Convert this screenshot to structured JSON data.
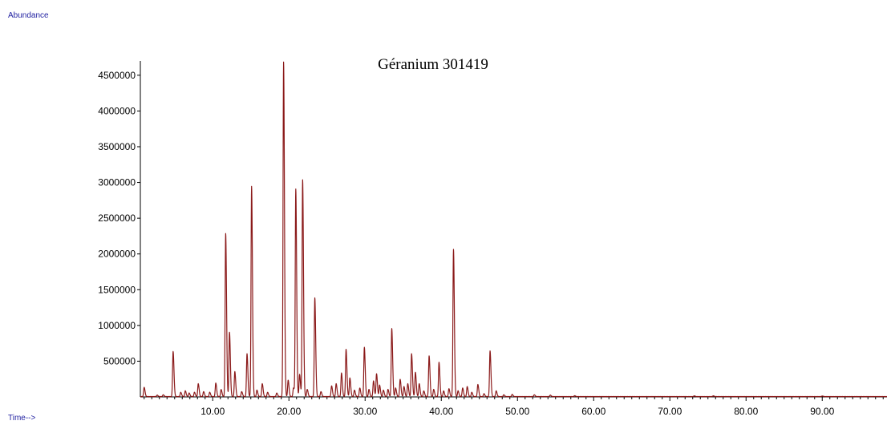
{
  "chart_data": {
    "type": "line",
    "title": "Géranium 301419",
    "ylabel": "Abundance",
    "xlabel": "Time-->",
    "xlim": [
      0.5,
      98.5
    ],
    "ylim": [
      0,
      4700000
    ],
    "x_ticks": [
      "10.00",
      "20.00",
      "30.00",
      "40.00",
      "50.00",
      "60.00",
      "70.00",
      "80.00",
      "90.00"
    ],
    "y_ticks": [
      "500000",
      "1000000",
      "1500000",
      "2000000",
      "2500000",
      "3000000",
      "3500000",
      "4000000",
      "4500000"
    ],
    "grid": false,
    "colors": {
      "line": "#8b1a1a",
      "axis": "#000000",
      "axis_text": "#1f1fa0"
    },
    "series": [
      {
        "peaks": [
          {
            "x": 1.0,
            "y": 130000
          },
          {
            "x": 2.7,
            "y": 20000
          },
          {
            "x": 3.5,
            "y": 25000
          },
          {
            "x": 4.8,
            "y": 630000
          },
          {
            "x": 5.8,
            "y": 60000
          },
          {
            "x": 6.4,
            "y": 80000
          },
          {
            "x": 6.9,
            "y": 50000
          },
          {
            "x": 7.6,
            "y": 60000
          },
          {
            "x": 8.1,
            "y": 180000
          },
          {
            "x": 8.8,
            "y": 70000
          },
          {
            "x": 9.6,
            "y": 60000
          },
          {
            "x": 10.4,
            "y": 190000
          },
          {
            "x": 11.1,
            "y": 100000
          },
          {
            "x": 11.7,
            "y": 2280000
          },
          {
            "x": 12.2,
            "y": 900000
          },
          {
            "x": 12.9,
            "y": 350000
          },
          {
            "x": 13.8,
            "y": 70000
          },
          {
            "x": 14.5,
            "y": 600000
          },
          {
            "x": 15.1,
            "y": 2940000
          },
          {
            "x": 15.8,
            "y": 90000
          },
          {
            "x": 16.5,
            "y": 180000
          },
          {
            "x": 17.2,
            "y": 60000
          },
          {
            "x": 18.4,
            "y": 50000
          },
          {
            "x": 19.3,
            "y": 4680000
          },
          {
            "x": 19.9,
            "y": 230000
          },
          {
            "x": 20.6,
            "y": 120000
          },
          {
            "x": 20.9,
            "y": 2900000
          },
          {
            "x": 21.4,
            "y": 310000
          },
          {
            "x": 21.8,
            "y": 3030000
          },
          {
            "x": 22.4,
            "y": 100000
          },
          {
            "x": 23.4,
            "y": 1380000
          },
          {
            "x": 24.2,
            "y": 70000
          },
          {
            "x": 25.6,
            "y": 150000
          },
          {
            "x": 26.2,
            "y": 180000
          },
          {
            "x": 26.9,
            "y": 330000
          },
          {
            "x": 27.5,
            "y": 660000
          },
          {
            "x": 28.0,
            "y": 260000
          },
          {
            "x": 28.6,
            "y": 90000
          },
          {
            "x": 29.3,
            "y": 120000
          },
          {
            "x": 29.9,
            "y": 690000
          },
          {
            "x": 30.5,
            "y": 100000
          },
          {
            "x": 31.1,
            "y": 220000
          },
          {
            "x": 31.5,
            "y": 320000
          },
          {
            "x": 31.9,
            "y": 160000
          },
          {
            "x": 32.4,
            "y": 90000
          },
          {
            "x": 33.0,
            "y": 100000
          },
          {
            "x": 33.5,
            "y": 950000
          },
          {
            "x": 34.0,
            "y": 120000
          },
          {
            "x": 34.6,
            "y": 240000
          },
          {
            "x": 35.1,
            "y": 140000
          },
          {
            "x": 35.6,
            "y": 180000
          },
          {
            "x": 36.1,
            "y": 600000
          },
          {
            "x": 36.6,
            "y": 340000
          },
          {
            "x": 37.1,
            "y": 180000
          },
          {
            "x": 37.7,
            "y": 80000
          },
          {
            "x": 38.4,
            "y": 570000
          },
          {
            "x": 39.0,
            "y": 100000
          },
          {
            "x": 39.7,
            "y": 480000
          },
          {
            "x": 40.3,
            "y": 80000
          },
          {
            "x": 41.0,
            "y": 110000
          },
          {
            "x": 41.6,
            "y": 2060000
          },
          {
            "x": 42.2,
            "y": 80000
          },
          {
            "x": 42.8,
            "y": 120000
          },
          {
            "x": 43.4,
            "y": 140000
          },
          {
            "x": 44.0,
            "y": 60000
          },
          {
            "x": 44.8,
            "y": 170000
          },
          {
            "x": 45.6,
            "y": 40000
          },
          {
            "x": 46.4,
            "y": 640000
          },
          {
            "x": 47.2,
            "y": 80000
          },
          {
            "x": 48.2,
            "y": 25000
          },
          {
            "x": 49.3,
            "y": 30000
          },
          {
            "x": 52.2,
            "y": 25000
          },
          {
            "x": 54.3,
            "y": 20000
          },
          {
            "x": 57.5,
            "y": 12000
          },
          {
            "x": 73.2,
            "y": 10000
          },
          {
            "x": 75.7,
            "y": 10000
          },
          {
            "x": 90.0,
            "y": 8000
          }
        ]
      }
    ]
  }
}
